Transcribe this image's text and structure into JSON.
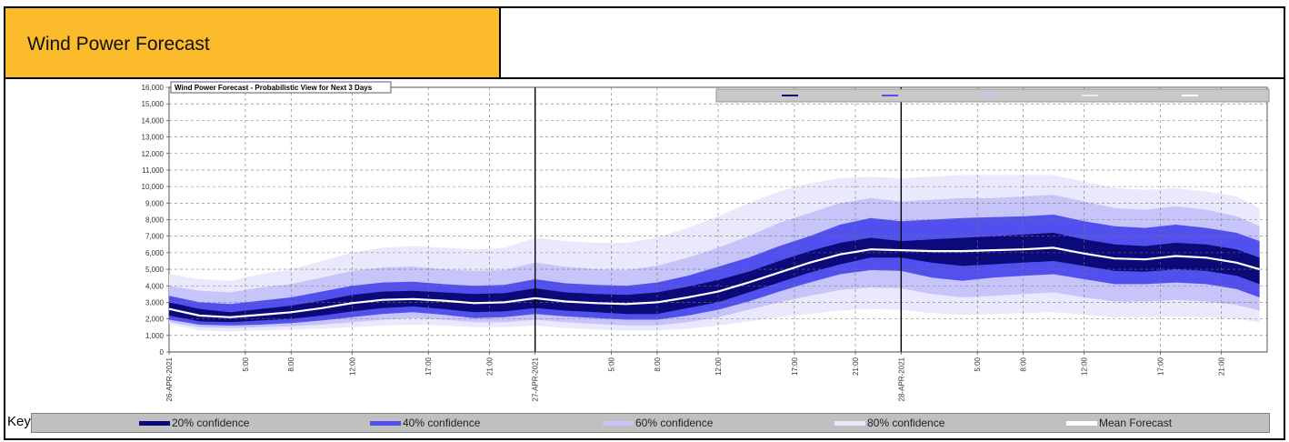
{
  "header": {
    "title": "Wind Power Forecast",
    "key_label": "Key"
  },
  "colors": {
    "header_bg": "#fbbb2a",
    "band80": "#e9e8fc",
    "band60": "#c6c4f8",
    "band40": "#5150ee",
    "band20": "#0b0a78",
    "mean": "#ffffff"
  },
  "legend": [
    {
      "label": "20% confidence",
      "color": "#0b0a78"
    },
    {
      "label": "40% confidence",
      "color": "#5150ee"
    },
    {
      "label": "60% confidence",
      "color": "#c6c4f8"
    },
    {
      "label": "80% confidence",
      "color": "#e9e8fc"
    },
    {
      "label": "Mean Forecast",
      "color": "#ffffff"
    }
  ],
  "chart_data": {
    "type": "area",
    "title": "Wind Power Forecast - Probabilistic  View for Next 3 Days",
    "ylim": [
      0,
      16000
    ],
    "yticks": [
      "0",
      "1,000",
      "2,000",
      "3,000",
      "4,000",
      "5,000",
      "6,000",
      "7,000",
      "8,000",
      "9,000",
      "10,000",
      "11,000",
      "12,000",
      "13,000",
      "14,000",
      "15,000",
      "16,000"
    ],
    "xlim": [
      0,
      72
    ],
    "day_lines": [
      0,
      24,
      48
    ],
    "xticks": [
      {
        "x": 0,
        "label": "26-APR-2021"
      },
      {
        "x": 5,
        "label": "5:00"
      },
      {
        "x": 8,
        "label": "8:00"
      },
      {
        "x": 12,
        "label": "12:00"
      },
      {
        "x": 17,
        "label": "17:00"
      },
      {
        "x": 21,
        "label": "21:00"
      },
      {
        "x": 24,
        "label": "27-APR-2021"
      },
      {
        "x": 29,
        "label": "5:00"
      },
      {
        "x": 32,
        "label": "8:00"
      },
      {
        "x": 36,
        "label": "12:00"
      },
      {
        "x": 41,
        "label": "17:00"
      },
      {
        "x": 45,
        "label": "21:00"
      },
      {
        "x": 48,
        "label": "28-APR-2021"
      },
      {
        "x": 53,
        "label": "5:00"
      },
      {
        "x": 56,
        "label": "8:00"
      },
      {
        "x": 60,
        "label": "12:00"
      },
      {
        "x": 65,
        "label": "17:00"
      },
      {
        "x": 69,
        "label": "21:00"
      }
    ],
    "x": [
      0,
      2,
      4,
      6,
      8,
      10,
      12,
      14,
      16,
      18,
      20,
      22,
      24,
      26,
      28,
      30,
      32,
      34,
      36,
      38,
      40,
      42,
      44,
      46,
      48,
      50,
      52,
      54,
      56,
      58,
      60,
      62,
      64,
      66,
      68,
      70,
      71.5
    ],
    "mean": [
      2600,
      2200,
      2100,
      2250,
      2400,
      2650,
      2950,
      3150,
      3200,
      3100,
      2950,
      3000,
      3250,
      3050,
      2950,
      2900,
      3000,
      3300,
      3650,
      4200,
      4800,
      5400,
      5900,
      6200,
      6150,
      6100,
      6100,
      6150,
      6200,
      6300,
      5950,
      5650,
      5600,
      5800,
      5700,
      5400,
      5000
    ],
    "band20": {
      "low": [
        2200,
        1850,
        1800,
        1900,
        2000,
        2200,
        2450,
        2650,
        2750,
        2600,
        2400,
        2450,
        2650,
        2500,
        2400,
        2300,
        2300,
        2650,
        3000,
        3600,
        4200,
        4800,
        5300,
        5700,
        5700,
        5400,
        5200,
        5300,
        5400,
        5500,
        5200,
        4900,
        4850,
        5000,
        4900,
        4600,
        4100
      ],
      "high": [
        3000,
        2600,
        2400,
        2600,
        2800,
        3100,
        3450,
        3650,
        3700,
        3600,
        3500,
        3550,
        3850,
        3600,
        3500,
        3450,
        3600,
        3950,
        4350,
        4850,
        5500,
        6100,
        6600,
        6900,
        6700,
        6800,
        6900,
        7000,
        7100,
        7200,
        6800,
        6500,
        6400,
        6600,
        6500,
        6200,
        5700
      ]
    },
    "band40": {
      "low": [
        1950,
        1650,
        1600,
        1650,
        1750,
        1900,
        2100,
        2300,
        2400,
        2250,
        2050,
        2100,
        2300,
        2150,
        2050,
        1950,
        1950,
        2200,
        2550,
        3050,
        3650,
        4200,
        4700,
        4950,
        4900,
        4500,
        4300,
        4500,
        4600,
        4700,
        4400,
        4100,
        4100,
        4200,
        4100,
        3800,
        3300
      ],
      "high": [
        3400,
        3000,
        2900,
        3100,
        3300,
        3650,
        4000,
        4200,
        4250,
        4100,
        4000,
        4050,
        4400,
        4150,
        4050,
        4000,
        4200,
        4600,
        5150,
        5700,
        6400,
        7000,
        7700,
        8100,
        7900,
        8000,
        8100,
        8150,
        8200,
        8300,
        7900,
        7600,
        7500,
        7700,
        7500,
        7200,
        6700
      ]
    },
    "band60": {
      "low": [
        1800,
        1500,
        1450,
        1500,
        1550,
        1650,
        1800,
        1950,
        2050,
        1950,
        1800,
        1800,
        1950,
        1800,
        1700,
        1600,
        1600,
        1800,
        2100,
        2550,
        3000,
        3400,
        3750,
        3900,
        3850,
        3500,
        3300,
        3400,
        3500,
        3600,
        3300,
        3050,
        3050,
        3150,
        3050,
        2850,
        2500
      ],
      "high": [
        4000,
        3700,
        3600,
        3900,
        4100,
        4500,
        4900,
        5100,
        5150,
        5000,
        4900,
        4950,
        5400,
        5150,
        5000,
        4950,
        5200,
        5700,
        6300,
        7000,
        7800,
        8400,
        9000,
        9300,
        9100,
        9200,
        9300,
        9300,
        9400,
        9500,
        9100,
        8700,
        8600,
        8800,
        8600,
        8200,
        7600
      ]
    },
    "band80": {
      "low": [
        1700,
        1300,
        1250,
        1300,
        1350,
        1400,
        1500,
        1600,
        1650,
        1600,
        1500,
        1500,
        1600,
        1450,
        1350,
        1300,
        1300,
        1400,
        1600,
        1850,
        2100,
        2300,
        2500,
        2600,
        2550,
        2350,
        2250,
        2300,
        2350,
        2400,
        2250,
        2100,
        2100,
        2150,
        2100,
        2000,
        1800
      ],
      "high": [
        4700,
        4400,
        4300,
        4700,
        5000,
        5500,
        6000,
        6300,
        6400,
        6300,
        6200,
        6300,
        6900,
        6700,
        6600,
        6600,
        6900,
        7500,
        8200,
        9000,
        9700,
        10200,
        10500,
        10600,
        10500,
        10600,
        10700,
        10700,
        10700,
        10700,
        10300,
        9900,
        9800,
        9900,
        9700,
        9400,
        8700
      ]
    },
    "grid": true
  }
}
